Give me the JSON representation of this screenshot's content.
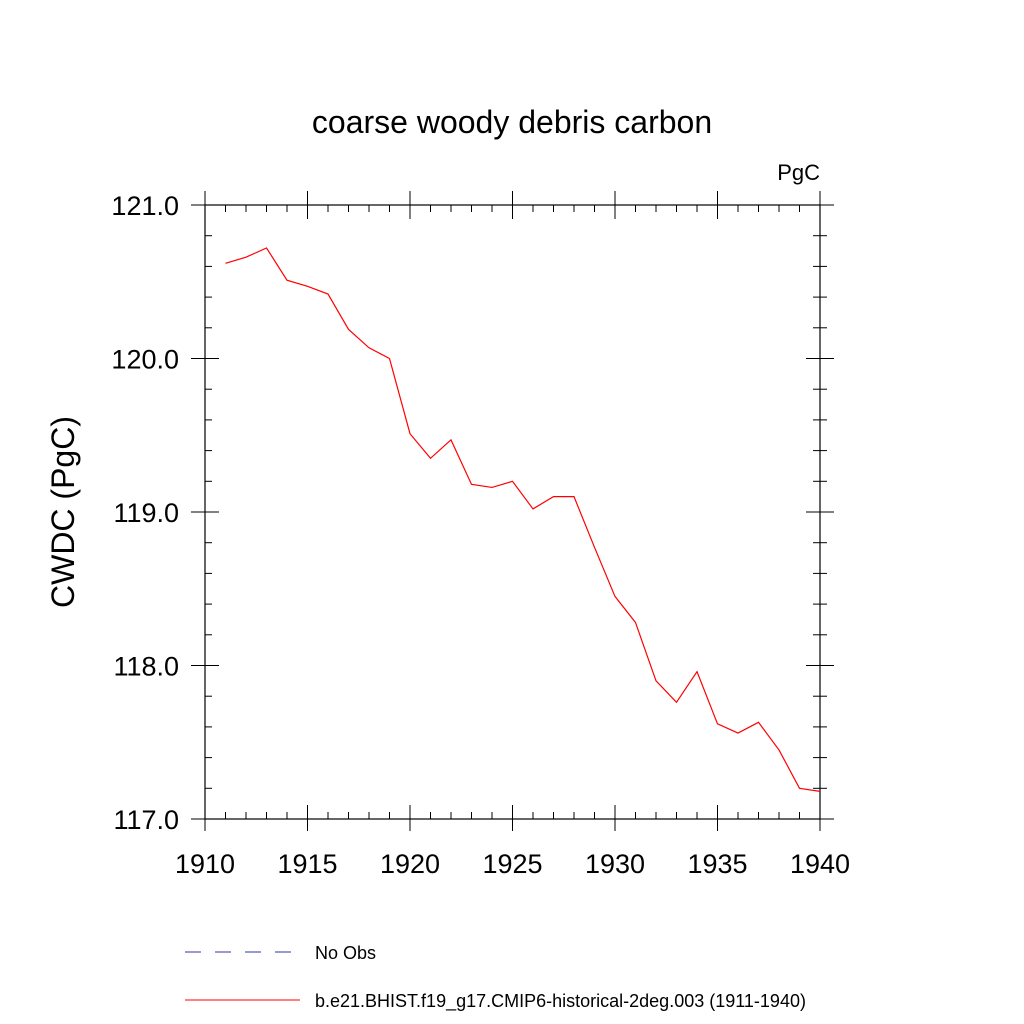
{
  "chart_data": {
    "type": "line",
    "title": "coarse woody debris carbon",
    "units_label": "PgC",
    "ylabel": "CWDC  (PgC)",
    "xlabel": "",
    "xlim": [
      1910,
      1940
    ],
    "ylim": [
      117.0,
      121.0
    ],
    "x_ticks": [
      1910,
      1915,
      1920,
      1925,
      1930,
      1935,
      1940
    ],
    "x_tick_labels": [
      "1910",
      "1915",
      "1920",
      "1925",
      "1930",
      "1935",
      "1940"
    ],
    "y_ticks": [
      117.0,
      118.0,
      119.0,
      120.0,
      121.0
    ],
    "y_tick_labels": [
      "117.0",
      "118.0",
      "119.0",
      "120.0",
      "121.0"
    ],
    "grid": false,
    "legend_position": "bottom",
    "series": [
      {
        "name": "b.e21.BHIST.f19_g17.CMIP6-historical-2deg.003 (1911-1940)",
        "color": "#ff0000",
        "dash": "solid",
        "x": [
          1911,
          1912,
          1913,
          1914,
          1915,
          1916,
          1917,
          1918,
          1919,
          1920,
          1921,
          1922,
          1923,
          1924,
          1925,
          1926,
          1927,
          1928,
          1929,
          1930,
          1931,
          1932,
          1933,
          1934,
          1935,
          1936,
          1937,
          1938,
          1939,
          1940
        ],
        "values": [
          120.62,
          120.66,
          120.72,
          120.51,
          120.47,
          120.42,
          120.19,
          120.07,
          120.0,
          119.51,
          119.35,
          119.47,
          119.18,
          119.16,
          119.2,
          119.02,
          119.1,
          119.1,
          118.77,
          118.45,
          118.28,
          117.9,
          117.76,
          117.96,
          117.62,
          117.56,
          117.63,
          117.45,
          117.2,
          117.18
        ]
      },
      {
        "name": "No Obs",
        "color": "#3333aa",
        "dash": "dashed",
        "x": [],
        "values": []
      }
    ]
  }
}
